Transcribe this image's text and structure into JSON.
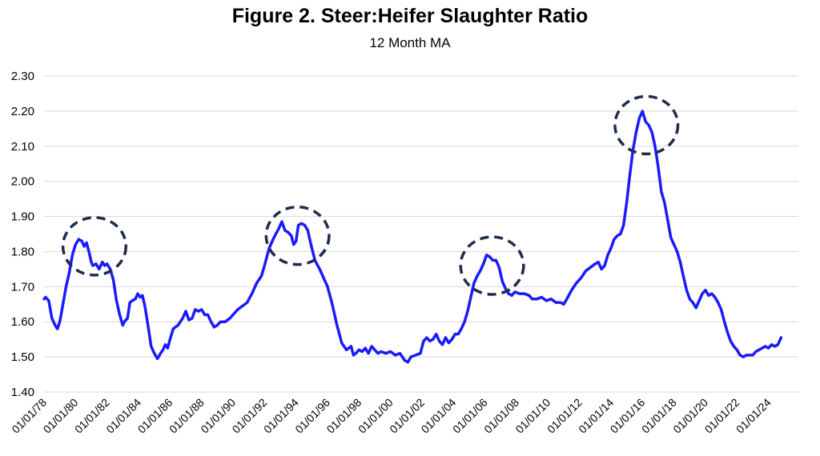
{
  "chart_data": {
    "type": "line",
    "title": "Figure 2. Steer:Heifer Slaughter Ratio",
    "subtitle": "12 Month MA",
    "xlabel": "",
    "ylabel": "",
    "ylim": [
      1.4,
      2.3
    ],
    "xlim": [
      1978.0,
      2025.9
    ],
    "grid": true,
    "y_ticks": [
      "1.40",
      "1.50",
      "1.60",
      "1.70",
      "1.80",
      "1.90",
      "2.00",
      "2.10",
      "2.20",
      "2.30"
    ],
    "y_tick_values": [
      1.4,
      1.5,
      1.6,
      1.7,
      1.8,
      1.9,
      2.0,
      2.1,
      2.2,
      2.3
    ],
    "x_ticks": [
      "01/01/78",
      "01/01/80",
      "01/01/82",
      "01/01/84",
      "01/01/86",
      "01/01/88",
      "01/01/90",
      "01/01/92",
      "01/01/94",
      "01/01/96",
      "01/01/98",
      "01/01/00",
      "01/01/02",
      "01/01/04",
      "01/01/06",
      "01/01/08",
      "01/01/10",
      "01/01/12",
      "01/01/14",
      "01/01/16",
      "01/01/18",
      "01/01/20",
      "01/01/22",
      "01/01/24"
    ],
    "x_tick_values": [
      1978,
      1980,
      1982,
      1984,
      1986,
      1988,
      1990,
      1992,
      1994,
      1996,
      1998,
      2000,
      2002,
      2004,
      2006,
      2008,
      2010,
      2012,
      2014,
      2016,
      2018,
      2020,
      2022,
      2024
    ],
    "series": [
      {
        "name": "Steer:Heifer Slaughter Ratio (12 Month MA)",
        "color": "#1a1aff",
        "points": [
          [
            1978.0,
            1.665
          ],
          [
            1978.1,
            1.67
          ],
          [
            1978.3,
            1.66
          ],
          [
            1978.5,
            1.61
          ],
          [
            1978.7,
            1.59
          ],
          [
            1978.85,
            1.58
          ],
          [
            1979.0,
            1.6
          ],
          [
            1979.2,
            1.65
          ],
          [
            1979.4,
            1.7
          ],
          [
            1979.6,
            1.74
          ],
          [
            1979.8,
            1.79
          ],
          [
            1980.0,
            1.82
          ],
          [
            1980.2,
            1.835
          ],
          [
            1980.4,
            1.83
          ],
          [
            1980.55,
            1.815
          ],
          [
            1980.7,
            1.825
          ],
          [
            1980.85,
            1.8
          ],
          [
            1981.0,
            1.77
          ],
          [
            1981.1,
            1.76
          ],
          [
            1981.3,
            1.765
          ],
          [
            1981.5,
            1.75
          ],
          [
            1981.7,
            1.77
          ],
          [
            1981.85,
            1.76
          ],
          [
            1982.0,
            1.765
          ],
          [
            1982.2,
            1.75
          ],
          [
            1982.4,
            1.72
          ],
          [
            1982.6,
            1.66
          ],
          [
            1982.8,
            1.62
          ],
          [
            1983.0,
            1.59
          ],
          [
            1983.1,
            1.6
          ],
          [
            1983.3,
            1.61
          ],
          [
            1983.45,
            1.655
          ],
          [
            1983.6,
            1.66
          ],
          [
            1983.8,
            1.665
          ],
          [
            1983.95,
            1.68
          ],
          [
            1984.1,
            1.67
          ],
          [
            1984.25,
            1.675
          ],
          [
            1984.4,
            1.645
          ],
          [
            1984.6,
            1.59
          ],
          [
            1984.8,
            1.53
          ],
          [
            1985.0,
            1.51
          ],
          [
            1985.2,
            1.495
          ],
          [
            1985.4,
            1.51
          ],
          [
            1985.55,
            1.52
          ],
          [
            1985.7,
            1.535
          ],
          [
            1985.85,
            1.525
          ],
          [
            1986.0,
            1.55
          ],
          [
            1986.2,
            1.58
          ],
          [
            1986.5,
            1.59
          ],
          [
            1986.8,
            1.61
          ],
          [
            1987.0,
            1.63
          ],
          [
            1987.2,
            1.605
          ],
          [
            1987.4,
            1.61
          ],
          [
            1987.6,
            1.635
          ],
          [
            1987.8,
            1.63
          ],
          [
            1988.0,
            1.635
          ],
          [
            1988.2,
            1.62
          ],
          [
            1988.4,
            1.62
          ],
          [
            1988.6,
            1.6
          ],
          [
            1988.8,
            1.585
          ],
          [
            1989.0,
            1.59
          ],
          [
            1989.2,
            1.6
          ],
          [
            1989.5,
            1.6
          ],
          [
            1989.8,
            1.61
          ],
          [
            1990.0,
            1.62
          ],
          [
            1990.3,
            1.635
          ],
          [
            1990.6,
            1.645
          ],
          [
            1990.9,
            1.655
          ],
          [
            1991.2,
            1.68
          ],
          [
            1991.5,
            1.71
          ],
          [
            1991.8,
            1.73
          ],
          [
            1992.0,
            1.76
          ],
          [
            1992.3,
            1.81
          ],
          [
            1992.6,
            1.84
          ],
          [
            1992.9,
            1.865
          ],
          [
            1993.1,
            1.885
          ],
          [
            1993.3,
            1.86
          ],
          [
            1993.5,
            1.855
          ],
          [
            1993.7,
            1.845
          ],
          [
            1993.85,
            1.82
          ],
          [
            1994.0,
            1.83
          ],
          [
            1994.15,
            1.875
          ],
          [
            1994.35,
            1.88
          ],
          [
            1994.55,
            1.875
          ],
          [
            1994.75,
            1.86
          ],
          [
            1994.95,
            1.82
          ],
          [
            1995.2,
            1.775
          ],
          [
            1995.5,
            1.75
          ],
          [
            1995.8,
            1.72
          ],
          [
            1996.0,
            1.7
          ],
          [
            1996.3,
            1.65
          ],
          [
            1996.6,
            1.59
          ],
          [
            1996.9,
            1.54
          ],
          [
            1997.2,
            1.52
          ],
          [
            1997.5,
            1.53
          ],
          [
            1997.65,
            1.505
          ],
          [
            1997.8,
            1.51
          ],
          [
            1998.0,
            1.52
          ],
          [
            1998.2,
            1.515
          ],
          [
            1998.4,
            1.525
          ],
          [
            1998.6,
            1.51
          ],
          [
            1998.8,
            1.53
          ],
          [
            1999.0,
            1.52
          ],
          [
            1999.2,
            1.51
          ],
          [
            1999.4,
            1.515
          ],
          [
            1999.7,
            1.51
          ],
          [
            2000.0,
            1.515
          ],
          [
            2000.3,
            1.505
          ],
          [
            2000.6,
            1.51
          ],
          [
            2000.9,
            1.49
          ],
          [
            2001.1,
            1.485
          ],
          [
            2001.3,
            1.5
          ],
          [
            2001.6,
            1.505
          ],
          [
            2001.9,
            1.51
          ],
          [
            2002.1,
            1.545
          ],
          [
            2002.3,
            1.555
          ],
          [
            2002.5,
            1.545
          ],
          [
            2002.7,
            1.55
          ],
          [
            2002.9,
            1.565
          ],
          [
            2003.1,
            1.545
          ],
          [
            2003.3,
            1.535
          ],
          [
            2003.5,
            1.555
          ],
          [
            2003.7,
            1.54
          ],
          [
            2003.9,
            1.55
          ],
          [
            2004.1,
            1.565
          ],
          [
            2004.3,
            1.565
          ],
          [
            2004.5,
            1.58
          ],
          [
            2004.7,
            1.6
          ],
          [
            2004.9,
            1.63
          ],
          [
            2005.1,
            1.67
          ],
          [
            2005.3,
            1.71
          ],
          [
            2005.5,
            1.73
          ],
          [
            2005.7,
            1.745
          ],
          [
            2005.9,
            1.765
          ],
          [
            2006.1,
            1.79
          ],
          [
            2006.3,
            1.785
          ],
          [
            2006.5,
            1.775
          ],
          [
            2006.7,
            1.775
          ],
          [
            2006.9,
            1.755
          ],
          [
            2007.1,
            1.715
          ],
          [
            2007.3,
            1.695
          ],
          [
            2007.5,
            1.68
          ],
          [
            2007.7,
            1.675
          ],
          [
            2007.9,
            1.685
          ],
          [
            2008.2,
            1.68
          ],
          [
            2008.5,
            1.68
          ],
          [
            2008.8,
            1.675
          ],
          [
            2009.0,
            1.665
          ],
          [
            2009.3,
            1.665
          ],
          [
            2009.6,
            1.67
          ],
          [
            2009.9,
            1.66
          ],
          [
            2010.2,
            1.665
          ],
          [
            2010.5,
            1.655
          ],
          [
            2010.8,
            1.655
          ],
          [
            2011.0,
            1.65
          ],
          [
            2011.2,
            1.665
          ],
          [
            2011.5,
            1.69
          ],
          [
            2011.8,
            1.71
          ],
          [
            2012.1,
            1.725
          ],
          [
            2012.4,
            1.745
          ],
          [
            2012.7,
            1.755
          ],
          [
            2013.0,
            1.765
          ],
          [
            2013.2,
            1.77
          ],
          [
            2013.4,
            1.75
          ],
          [
            2013.6,
            1.76
          ],
          [
            2013.8,
            1.79
          ],
          [
            2014.0,
            1.81
          ],
          [
            2014.2,
            1.835
          ],
          [
            2014.4,
            1.845
          ],
          [
            2014.6,
            1.85
          ],
          [
            2014.8,
            1.875
          ],
          [
            2015.0,
            1.94
          ],
          [
            2015.2,
            2.02
          ],
          [
            2015.4,
            2.09
          ],
          [
            2015.6,
            2.14
          ],
          [
            2015.8,
            2.18
          ],
          [
            2016.0,
            2.2
          ],
          [
            2016.2,
            2.17
          ],
          [
            2016.4,
            2.16
          ],
          [
            2016.6,
            2.14
          ],
          [
            2016.8,
            2.1
          ],
          [
            2017.0,
            2.04
          ],
          [
            2017.2,
            1.97
          ],
          [
            2017.4,
            1.94
          ],
          [
            2017.6,
            1.89
          ],
          [
            2017.8,
            1.84
          ],
          [
            2018.0,
            1.82
          ],
          [
            2018.2,
            1.8
          ],
          [
            2018.4,
            1.77
          ],
          [
            2018.6,
            1.73
          ],
          [
            2018.8,
            1.69
          ],
          [
            2019.0,
            1.665
          ],
          [
            2019.2,
            1.655
          ],
          [
            2019.4,
            1.64
          ],
          [
            2019.6,
            1.66
          ],
          [
            2019.8,
            1.68
          ],
          [
            2020.0,
            1.69
          ],
          [
            2020.2,
            1.675
          ],
          [
            2020.4,
            1.68
          ],
          [
            2020.6,
            1.67
          ],
          [
            2020.8,
            1.655
          ],
          [
            2021.0,
            1.635
          ],
          [
            2021.2,
            1.6
          ],
          [
            2021.4,
            1.57
          ],
          [
            2021.6,
            1.545
          ],
          [
            2021.8,
            1.53
          ],
          [
            2022.0,
            1.52
          ],
          [
            2022.2,
            1.505
          ],
          [
            2022.4,
            1.5
          ],
          [
            2022.6,
            1.505
          ],
          [
            2022.8,
            1.505
          ],
          [
            2023.0,
            1.505
          ],
          [
            2023.2,
            1.515
          ],
          [
            2023.4,
            1.52
          ],
          [
            2023.6,
            1.525
          ],
          [
            2023.8,
            1.53
          ],
          [
            2024.0,
            1.525
          ],
          [
            2024.2,
            1.535
          ],
          [
            2024.4,
            1.53
          ],
          [
            2024.6,
            1.535
          ],
          [
            2024.8,
            1.555
          ]
        ]
      }
    ],
    "annotations": [
      {
        "type": "ellipse",
        "style": "dashed",
        "color": "#1f2d4a",
        "center": [
          1981.2,
          1.815
        ],
        "rx_years": 2.0,
        "ry_value": 0.082
      },
      {
        "type": "ellipse",
        "style": "dashed",
        "color": "#1f2d4a",
        "center": [
          1994.1,
          1.845
        ],
        "rx_years": 2.0,
        "ry_value": 0.082
      },
      {
        "type": "ellipse",
        "style": "dashed",
        "color": "#1f2d4a",
        "center": [
          2006.45,
          1.76
        ],
        "rx_years": 2.0,
        "ry_value": 0.082
      },
      {
        "type": "ellipse",
        "style": "dashed",
        "color": "#1f2d4a",
        "center": [
          2016.25,
          2.16
        ],
        "rx_years": 2.0,
        "ry_value": 0.082
      }
    ]
  }
}
